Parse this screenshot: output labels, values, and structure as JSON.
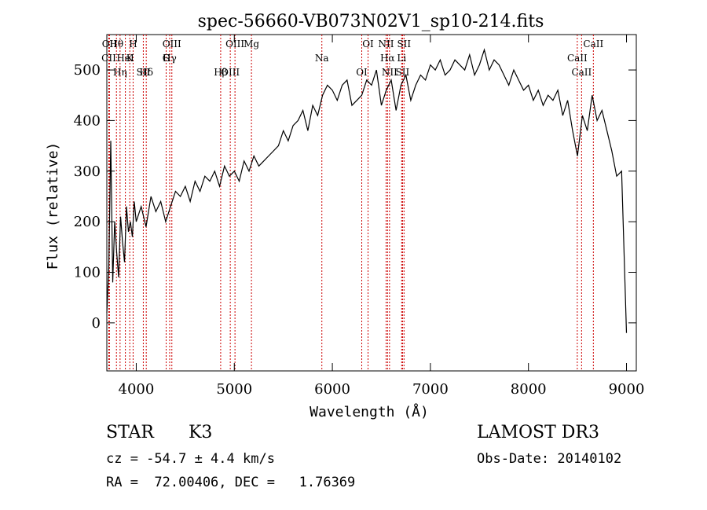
{
  "chart_data": {
    "type": "line",
    "title": "spec-56660-VB073N02V1_sp10-214.fits",
    "xlabel": "Wavelength (Å)",
    "ylabel": "Flux (relative)",
    "xlim": [
      3700,
      9100
    ],
    "ylim": [
      -95,
      570
    ],
    "x_ticks": [
      4000,
      5000,
      6000,
      7000,
      8000,
      9000
    ],
    "x_tick_labels": [
      "4000",
      "5000",
      "6000",
      "7000",
      "8000",
      "9000"
    ],
    "y_ticks": [
      0,
      100,
      200,
      300,
      400,
      500
    ],
    "y_tick_labels": [
      "0",
      "100",
      "200",
      "300",
      "400",
      "500"
    ],
    "series": [
      {
        "name": "flux",
        "color": "#000000",
        "x": [
          3700,
          3720,
          3740,
          3760,
          3780,
          3800,
          3820,
          3840,
          3860,
          3880,
          3900,
          3920,
          3940,
          3960,
          3980,
          4000,
          4050,
          4100,
          4150,
          4200,
          4250,
          4300,
          4350,
          4400,
          4450,
          4500,
          4550,
          4600,
          4650,
          4700,
          4750,
          4800,
          4850,
          4900,
          4950,
          5000,
          5050,
          5100,
          5150,
          5200,
          5250,
          5300,
          5350,
          5400,
          5450,
          5500,
          5550,
          5600,
          5650,
          5700,
          5750,
          5800,
          5850,
          5900,
          5950,
          6000,
          6050,
          6100,
          6150,
          6200,
          6250,
          6300,
          6350,
          6400,
          6450,
          6500,
          6550,
          6600,
          6650,
          6700,
          6750,
          6800,
          6850,
          6900,
          6950,
          7000,
          7050,
          7100,
          7150,
          7200,
          7250,
          7300,
          7350,
          7400,
          7450,
          7500,
          7550,
          7600,
          7650,
          7700,
          7750,
          7800,
          7850,
          7900,
          7950,
          8000,
          8050,
          8100,
          8150,
          8200,
          8250,
          8300,
          8350,
          8400,
          8450,
          8500,
          8550,
          8600,
          8650,
          8700,
          8750,
          8800,
          8850,
          8900,
          8950,
          9000
        ],
        "y": [
          20,
          110,
          360,
          80,
          200,
          140,
          90,
          210,
          160,
          120,
          230,
          180,
          200,
          170,
          240,
          200,
          230,
          190,
          250,
          220,
          240,
          200,
          230,
          260,
          250,
          270,
          240,
          280,
          260,
          290,
          280,
          300,
          270,
          310,
          290,
          300,
          280,
          320,
          300,
          330,
          310,
          320,
          330,
          340,
          350,
          380,
          360,
          390,
          400,
          420,
          380,
          430,
          410,
          450,
          470,
          460,
          440,
          470,
          480,
          430,
          440,
          450,
          480,
          470,
          500,
          430,
          460,
          480,
          420,
          470,
          490,
          440,
          470,
          490,
          480,
          510,
          500,
          520,
          490,
          500,
          520,
          510,
          500,
          530,
          490,
          510,
          540,
          500,
          520,
          510,
          490,
          470,
          500,
          480,
          460,
          470,
          440,
          460,
          430,
          450,
          440,
          460,
          410,
          440,
          380,
          330,
          410,
          380,
          450,
          400,
          420,
          380,
          340,
          290,
          300,
          -20
        ]
      }
    ],
    "annotations": [
      {
        "label": "Hθ",
        "x": 3798
      },
      {
        "label": "K",
        "x": 3934
      },
      {
        "label": "Hδ",
        "x": 4102
      },
      {
        "label": "OII",
        "x": 3727
      },
      {
        "label": "HeI",
        "x": 3889
      },
      {
        "label": "SII",
        "x": 4072
      },
      {
        "label": "OIII",
        "x": 4363
      },
      {
        "label": "Hγ",
        "x": 4341
      },
      {
        "label": "OIII",
        "x": 4959
      },
      {
        "label": "OIII",
        "x": 5007
      },
      {
        "label": "CII",
        "x": 3720
      },
      {
        "label": "Hη",
        "x": 3835
      },
      {
        "label": "H",
        "x": 3968
      },
      {
        "label": "G",
        "x": 4305
      },
      {
        "label": "Hβ",
        "x": 4861
      },
      {
        "label": "Mg",
        "x": 5175
      },
      {
        "label": "Na",
        "x": 5893
      },
      {
        "label": "OI",
        "x": 6300
      },
      {
        "label": "OI",
        "x": 6364
      },
      {
        "label": "Hα",
        "x": 6563
      },
      {
        "label": "SII",
        "x": 6716
      },
      {
        "label": "NII",
        "x": 6548
      },
      {
        "label": "Li",
        "x": 6707
      },
      {
        "label": "NII",
        "x": 6583
      },
      {
        "label": "SII",
        "x": 6731
      },
      {
        "label": "CaII",
        "x": 8498
      },
      {
        "label": "CaII",
        "x": 8542
      },
      {
        "label": "CaII",
        "x": 8662
      }
    ]
  },
  "info": {
    "class": "STAR",
    "subclass": "K3",
    "survey": "LAMOST DR3",
    "redshift": "cz = -54.7 ± 4.4 km/s",
    "obs_date": "Obs-Date: 20140102",
    "coords": "RA =  72.00406, DEC =   1.76369"
  },
  "colors": {
    "line": "#000000",
    "marker": "#cc0000"
  }
}
